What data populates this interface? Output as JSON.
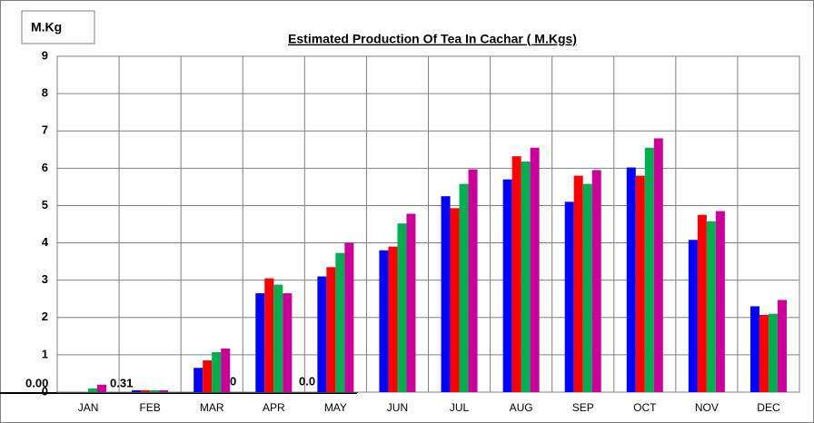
{
  "chart_data": {
    "type": "bar",
    "title": "Estimated Production Of Tea In Cachar ( M.Kgs)",
    "y_label": "M.Kg",
    "categories": [
      "JAN",
      "FEB",
      "MAR",
      "APR",
      "MAY",
      "JUN",
      "JUL",
      "AUG",
      "SEP",
      "OCT",
      "NOV",
      "DEC"
    ],
    "series": [
      {
        "color": "#0000ff",
        "values": [
          0,
          0.05,
          0.65,
          2.65,
          3.1,
          3.8,
          5.25,
          5.7,
          5.1,
          6.02,
          4.08,
          2.3
        ]
      },
      {
        "color": "#ff0000",
        "values": [
          0,
          0.05,
          0.85,
          3.05,
          3.35,
          3.9,
          4.93,
          6.32,
          5.8,
          5.8,
          4.75,
          2.07
        ]
      },
      {
        "color": "#00b050",
        "values": [
          0.1,
          0.05,
          1.07,
          2.88,
          3.73,
          4.52,
          5.58,
          6.18,
          5.58,
          6.55,
          4.58,
          2.1
        ]
      },
      {
        "color": "#cc0099",
        "values": [
          0.2,
          0.05,
          1.17,
          2.65,
          4.0,
          4.78,
          5.97,
          6.55,
          5.95,
          6.8,
          4.85,
          2.47
        ]
      }
    ],
    "ylim": [
      0,
      9
    ],
    "yticks": [
      0,
      1,
      2,
      3,
      4,
      5,
      6,
      7,
      8,
      9
    ],
    "grid": true,
    "annotations": [
      {
        "text": "0.00",
        "color": "#ff0000"
      },
      {
        "text": "0.31",
        "color": "#000000"
      },
      {
        "text": "0",
        "color": "#00b050"
      },
      {
        "text": "0.0",
        "color": "#cc0099"
      }
    ]
  }
}
